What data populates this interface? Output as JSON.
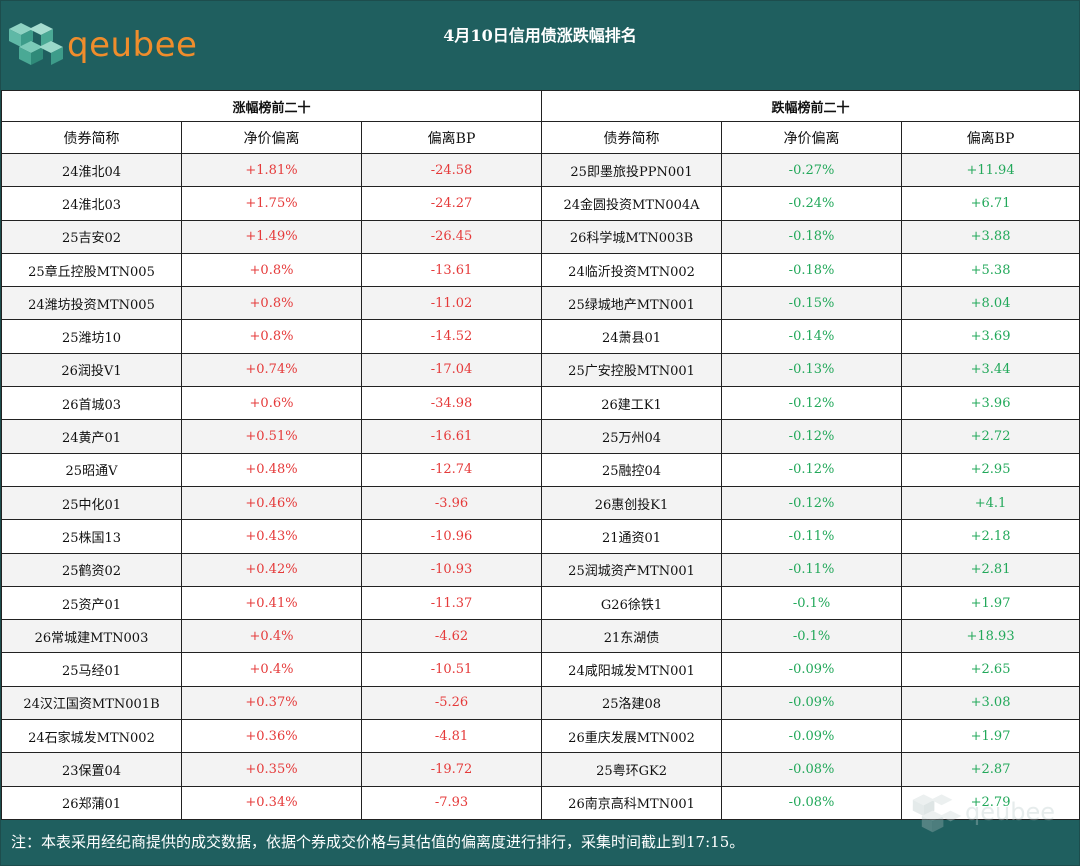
{
  "header": {
    "logo_text": "qeubee",
    "title": "4月10日信用债涨跌幅排名"
  },
  "sections": {
    "left": "涨幅榜前二十",
    "right": "跌幅榜前二十"
  },
  "columns": [
    "债券简称",
    "净价偏离",
    "偏离BP",
    "债券简称",
    "净价偏离",
    "偏离BP"
  ],
  "rows": [
    [
      "24淮北04",
      "+1.81%",
      "-24.58",
      "25即墨旅投PPN001",
      "-0.27%",
      "+11.94"
    ],
    [
      "24淮北03",
      "+1.75%",
      "-24.27",
      "24金圆投资MTN004A",
      "-0.24%",
      "+6.71"
    ],
    [
      "25吉安02",
      "+1.49%",
      "-26.45",
      "26科学城MTN003B",
      "-0.18%",
      "+3.88"
    ],
    [
      "25章丘控股MTN005",
      "+0.8%",
      "-13.61",
      "24临沂投资MTN002",
      "-0.18%",
      "+5.38"
    ],
    [
      "24潍坊投资MTN005",
      "+0.8%",
      "-11.02",
      "25绿城地产MTN001",
      "-0.15%",
      "+8.04"
    ],
    [
      "25潍坊10",
      "+0.8%",
      "-14.52",
      "24萧县01",
      "-0.14%",
      "+3.69"
    ],
    [
      "26润投V1",
      "+0.74%",
      "-17.04",
      "25广安控股MTN001",
      "-0.13%",
      "+3.44"
    ],
    [
      "26首城03",
      "+0.6%",
      "-34.98",
      "26建工K1",
      "-0.12%",
      "+3.96"
    ],
    [
      "24黄产01",
      "+0.51%",
      "-16.61",
      "25万州04",
      "-0.12%",
      "+2.72"
    ],
    [
      "25昭通V",
      "+0.48%",
      "-12.74",
      "25融控04",
      "-0.12%",
      "+2.95"
    ],
    [
      "25中化01",
      "+0.46%",
      "-3.96",
      "26惠创投K1",
      "-0.12%",
      "+4.1"
    ],
    [
      "25株国13",
      "+0.43%",
      "-10.96",
      "21通资01",
      "-0.11%",
      "+2.18"
    ],
    [
      "25鹤资02",
      "+0.42%",
      "-10.93",
      "25润城资产MTN001",
      "-0.11%",
      "+2.81"
    ],
    [
      "25资产01",
      "+0.41%",
      "-11.37",
      "G26徐铁1",
      "-0.1%",
      "+1.97"
    ],
    [
      "26常城建MTN003",
      "+0.4%",
      "-4.62",
      "21东湖债",
      "-0.1%",
      "+18.93"
    ],
    [
      "25马经01",
      "+0.4%",
      "-10.51",
      "24咸阳城发MTN001",
      "-0.09%",
      "+2.65"
    ],
    [
      "24汉江国资MTN001B",
      "+0.37%",
      "-5.26",
      "25洛建08",
      "-0.09%",
      "+3.08"
    ],
    [
      "24石家城发MTN002",
      "+0.36%",
      "-4.81",
      "26重庆发展MTN002",
      "-0.09%",
      "+1.97"
    ],
    [
      "23保置04",
      "+0.35%",
      "-19.72",
      "25粤环GK2",
      "-0.08%",
      "+2.87"
    ],
    [
      "26郑蒲01",
      "+0.34%",
      "-7.93",
      "26南京高科MTN001",
      "-0.08%",
      "+2.79"
    ]
  ],
  "footer": {
    "note": "注：本表采用经纪商提供的成交数据，依据个券成交价格与其估值的偏离度进行排行，采集时间截止到17:15。",
    "watermark_text": "qeubee"
  },
  "colors": {
    "header_bg": "#1f5f5f",
    "logo_orange": "#ef8d2c",
    "up_red": "#e53a3a",
    "down_green": "#22a85a"
  }
}
